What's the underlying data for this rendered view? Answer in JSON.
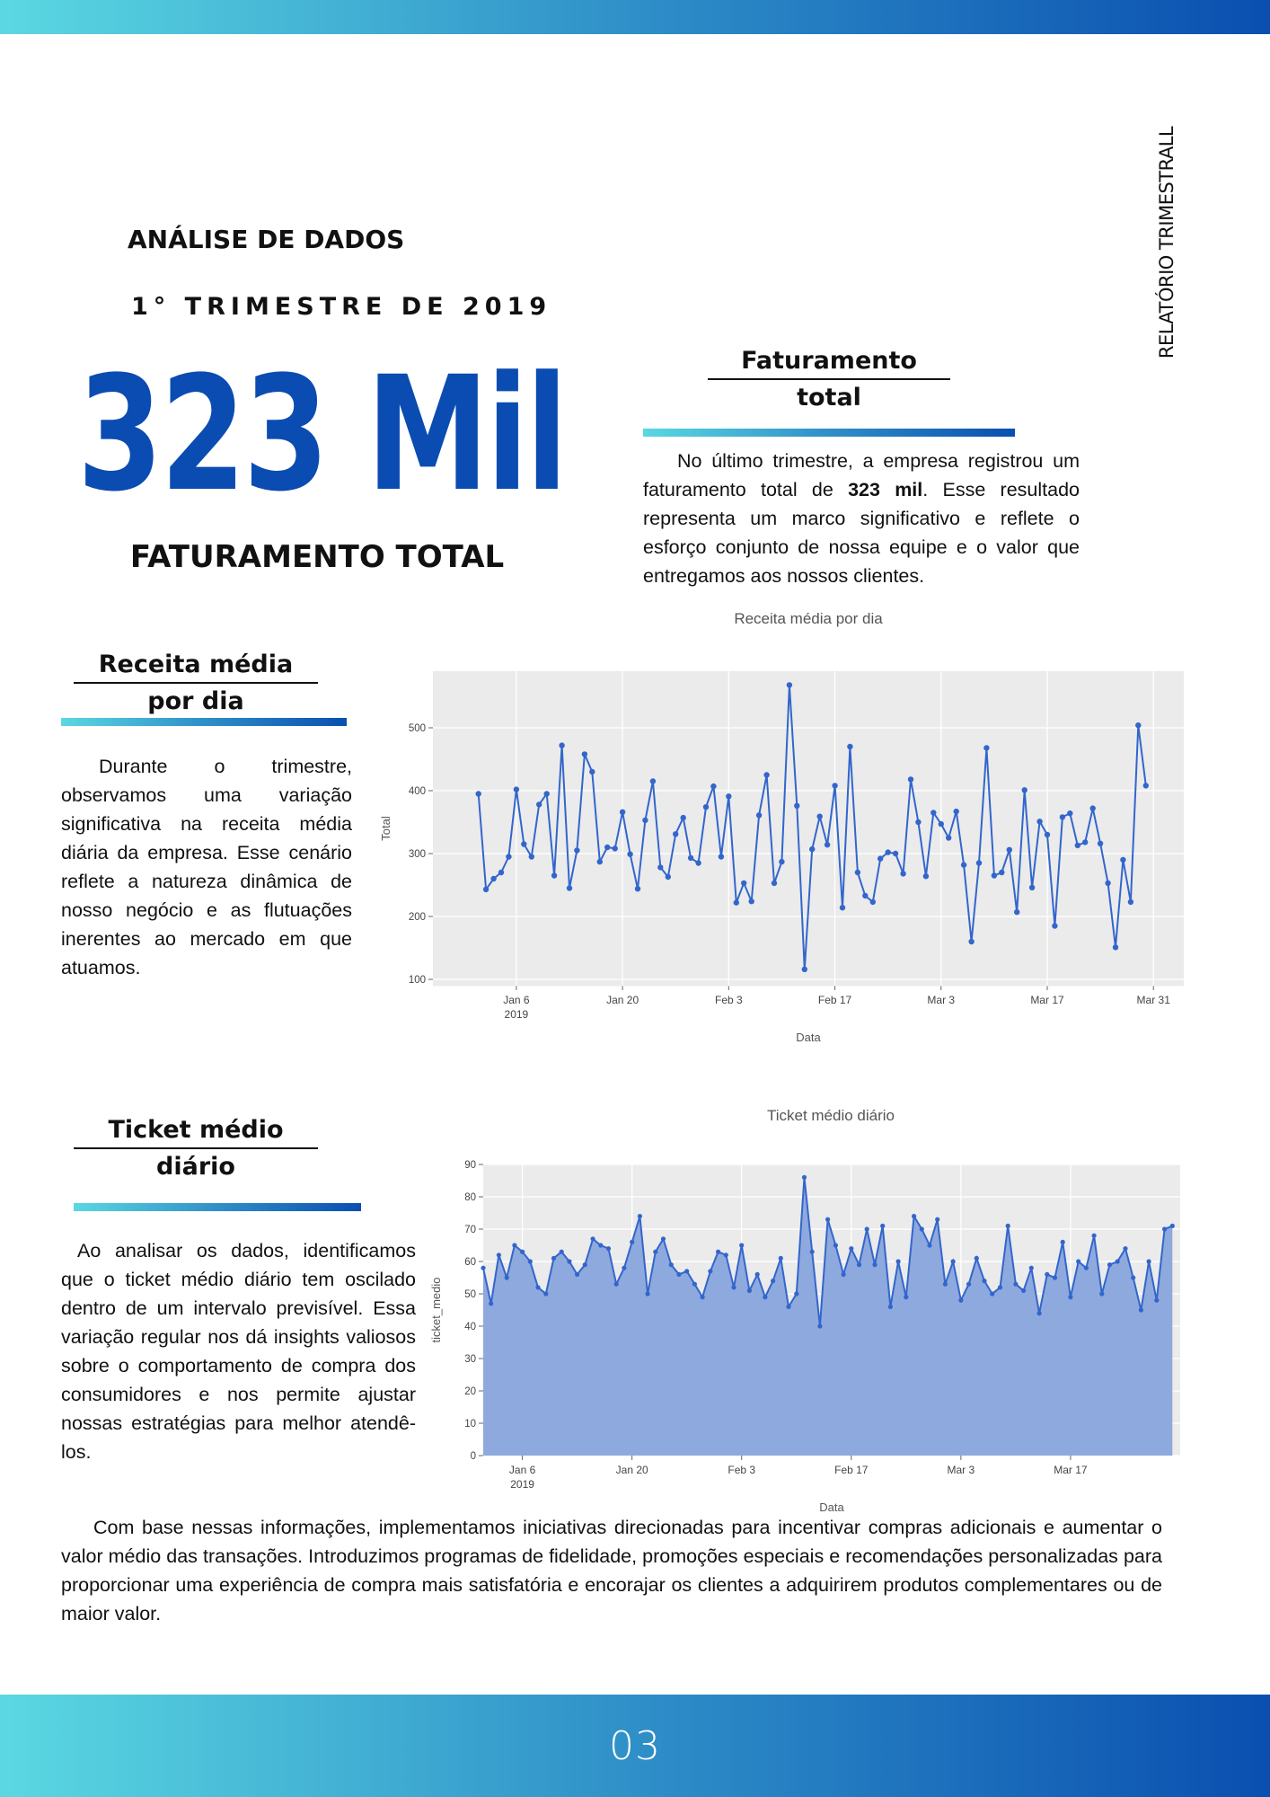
{
  "header": {
    "side_label": "RELATÓRIO TRIMESTRALL",
    "kicker": "ANÁLISE DE DADOS",
    "quarter": "1° TRIMESTRE DE 2019",
    "big_number": "323 Mil",
    "big_caption": "FATURAMENTO TOTAL"
  },
  "colors": {
    "accent": "#0a4cb1",
    "gradient_start": "#5ad8e2",
    "gradient_end": "#0a4fb0",
    "line": "#3366cc",
    "area_fill": "#8ea9dd"
  },
  "faturamento": {
    "title_line1": "Faturamento",
    "title_line2": "total",
    "text_before": "No último trimestre, a empresa registrou um faturamento total de ",
    "text_bold": "323 mil",
    "text_after": ". Esse resultado representa um marco significativo e reflete o esforço conjunto de nossa equipe e o valor que entregamos aos nossos clientes."
  },
  "receita": {
    "title_line1": "Receita média",
    "title_line2": "por dia",
    "text": "Durante o trimestre, observamos uma variação significativa na receita média diária da empresa. Esse cenário reflete a natureza dinâmica de nosso negócio e as flutuações inerentes ao mercado em que atuamos."
  },
  "ticket": {
    "title_line1": "Ticket médio",
    "title_line2": "diário",
    "text": "Ao analisar os dados, identificamos que o ticket médio diário tem oscilado dentro de um intervalo previsível. Essa variação regular nos dá insights valiosos sobre o comportamento de compra dos consumidores e nos permite ajustar nossas estratégias para melhor atendê-los."
  },
  "closing": {
    "text": "Com base nessas informações, implementamos iniciativas direcionadas para incentivar compras adicionais e aumentar o valor médio das transações. Introduzimos programas de fidelidade, promoções especiais e recomendações personalizadas para proporcionar uma experiência de compra mais satisfatória e encorajar os clientes a adquirirem produtos complementares ou de maior valor."
  },
  "footer": {
    "page_number": "03"
  },
  "chart_data": [
    {
      "type": "line",
      "title": "Receita média por dia",
      "xlabel": "Data",
      "ylabel": "Total",
      "x_start": "2019-01-01",
      "x_end": "2019-03-31",
      "xlim": [
        "2018-12-26",
        "2019-04-04"
      ],
      "ylim": [
        90,
        590
      ],
      "yticks": [
        100,
        200,
        300,
        400,
        500
      ],
      "xticks": [
        {
          "date": "2019-01-06",
          "label": "Jan 6",
          "sublabel": "2019"
        },
        {
          "date": "2019-01-20",
          "label": "Jan 20"
        },
        {
          "date": "2019-02-03",
          "label": "Feb 3"
        },
        {
          "date": "2019-02-17",
          "label": "Feb 17"
        },
        {
          "date": "2019-03-03",
          "label": "Mar 3"
        },
        {
          "date": "2019-03-17",
          "label": "Mar 17"
        },
        {
          "date": "2019-03-31",
          "label": "Mar 31"
        }
      ],
      "grid": true,
      "markers": true,
      "values": [
        395,
        243,
        260,
        270,
        295,
        402,
        315,
        295,
        378,
        395,
        265,
        472,
        245,
        305,
        458,
        430,
        287,
        310,
        308,
        366,
        299,
        244,
        353,
        415,
        278,
        263,
        331,
        357,
        293,
        285,
        374,
        407,
        295,
        391,
        222,
        253,
        224,
        361,
        425,
        253,
        287,
        568,
        376,
        116,
        307,
        359,
        314,
        408,
        214,
        470,
        270,
        233,
        223,
        292,
        302,
        300,
        268,
        418,
        350,
        264,
        365,
        347,
        325,
        367,
        282,
        160,
        285,
        468,
        265,
        270,
        306,
        207,
        401,
        246,
        351,
        330,
        185,
        358,
        364,
        313,
        318,
        372,
        316,
        253,
        151,
        290,
        223,
        504,
        408
      ]
    },
    {
      "type": "area",
      "title": "Ticket médio diário",
      "xlabel": "Data",
      "ylabel": "ticket_medio",
      "x_start": "2019-01-01",
      "x_end": "2019-03-31",
      "xlim": [
        "2019-01-01",
        "2019-03-31"
      ],
      "ylim": [
        0,
        90
      ],
      "yticks": [
        0,
        10,
        20,
        30,
        40,
        50,
        60,
        70,
        80,
        90
      ],
      "xticks": [
        {
          "date": "2019-01-06",
          "label": "Jan 6",
          "sublabel": "2019"
        },
        {
          "date": "2019-01-20",
          "label": "Jan 20"
        },
        {
          "date": "2019-02-03",
          "label": "Feb 3"
        },
        {
          "date": "2019-02-17",
          "label": "Feb 17"
        },
        {
          "date": "2019-03-03",
          "label": "Mar 3"
        },
        {
          "date": "2019-03-17",
          "label": "Mar 17"
        }
      ],
      "grid": true,
      "markers": true,
      "values": [
        58,
        47,
        62,
        55,
        65,
        63,
        60,
        52,
        50,
        61,
        63,
        60,
        56,
        59,
        67,
        65,
        64,
        53,
        58,
        66,
        74,
        50,
        63,
        67,
        59,
        56,
        57,
        53,
        49,
        57,
        63,
        62,
        52,
        65,
        51,
        56,
        49,
        54,
        61,
        46,
        50,
        86,
        63,
        40,
        73,
        65,
        56,
        64,
        59,
        70,
        59,
        71,
        46,
        60,
        49,
        74,
        70,
        65,
        73,
        53,
        60,
        48,
        53,
        61,
        54,
        50,
        52,
        71,
        53,
        51,
        58,
        44,
        56,
        55,
        66,
        49,
        60,
        58,
        68,
        50,
        59,
        60,
        64,
        55,
        45,
        60,
        48,
        70,
        71
      ]
    }
  ]
}
